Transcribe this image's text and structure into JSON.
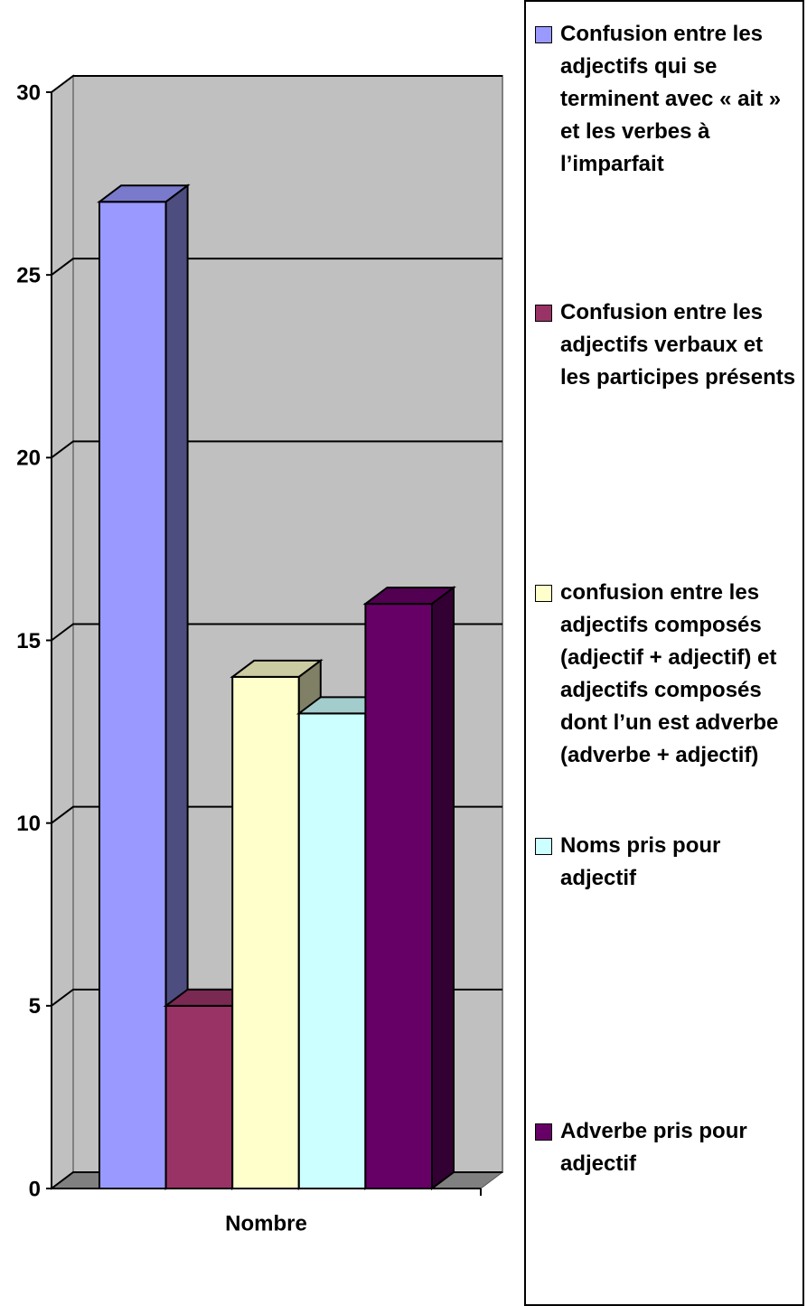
{
  "chart_data": {
    "type": "bar3d",
    "categories": [
      "Nombre"
    ],
    "series": [
      {
        "name": "Confusion entre les adjectifs qui se terminent avec « ait » et les verbes à l’imparfait",
        "color": "#9999ff",
        "values": [
          27
        ]
      },
      {
        "name": "Confusion entre les adjectifs verbaux et les participes présents",
        "color": "#993366",
        "values": [
          5
        ]
      },
      {
        "name": "confusion entre les adjectifs composés (adjectif + adjectif) et adjectifs composés dont l’un est adverbe (adverbe + adjectif)",
        "color": "#ffffcc",
        "values": [
          14
        ]
      },
      {
        "name": "Noms pris pour adjectif",
        "color": "#ccffff",
        "values": [
          13
        ]
      },
      {
        "name": "Adverbe pris pour adjectif",
        "color": "#660066",
        "values": [
          16
        ]
      }
    ],
    "ylim": [
      0,
      30
    ],
    "yticks": [
      0,
      5,
      10,
      15,
      20,
      25,
      30
    ],
    "grid": true,
    "legend": "right"
  }
}
